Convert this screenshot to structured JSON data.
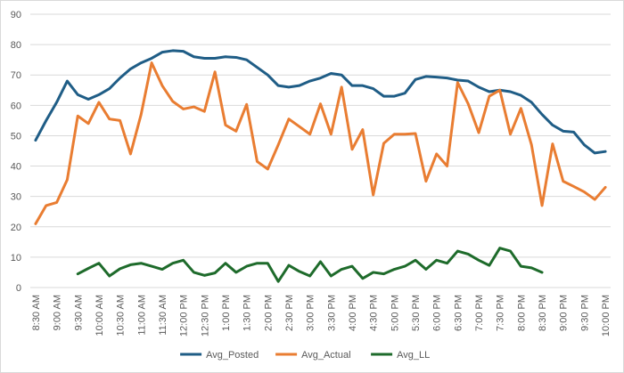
{
  "chart_data": {
    "type": "line",
    "categories": [
      "8:30 AM",
      null,
      "9:00 AM",
      null,
      "9:30 AM",
      null,
      "10:00 AM",
      null,
      "10:30 AM",
      null,
      "11:00 AM",
      null,
      "11:30 AM",
      null,
      "12:00 PM",
      null,
      "12:30 PM",
      null,
      "1:00 PM",
      null,
      "1:30 PM",
      null,
      "2:00 PM",
      null,
      "2:30 PM",
      null,
      "3:00 PM",
      null,
      "3:30 PM",
      null,
      "4:00 PM",
      null,
      "4:30 PM",
      null,
      "5:00 PM",
      null,
      "5:30 PM",
      null,
      "6:00 PM",
      null,
      "6:30 PM",
      null,
      "7:00 PM",
      null,
      "7:30 PM",
      null,
      "8:00 PM",
      null,
      "8:30 PM",
      null,
      "9:00 PM",
      null,
      "9:30 PM",
      null,
      "10:00 PM"
    ],
    "series": [
      {
        "name": "Avg_Posted",
        "color": "#1f5d86",
        "values": [
          48.5,
          55,
          61,
          68,
          63.5,
          62,
          63.5,
          65.5,
          69,
          72,
          74,
          75.5,
          77.5,
          78,
          77.8,
          76,
          75.5,
          75.5,
          76,
          75.8,
          75,
          72.5,
          70,
          66.5,
          66,
          66.5,
          68,
          69,
          70.5,
          70,
          66.5,
          66.5,
          65.5,
          63,
          63,
          64,
          68.5,
          69.5,
          69.3,
          69,
          68.3,
          68,
          66,
          64.5,
          65,
          64.5,
          63.3,
          61,
          57,
          53.5,
          51.5,
          51.2,
          47,
          44.3,
          44.8
        ]
      },
      {
        "name": "Avg_Actual",
        "color": "#e97d32",
        "values": [
          21,
          27,
          28,
          35.5,
          56.5,
          54,
          61,
          55.5,
          55,
          44,
          57,
          74,
          66.5,
          61.3,
          58.8,
          59.5,
          58,
          71,
          53.5,
          51.5,
          60.3,
          41.5,
          39,
          47,
          55.5,
          53,
          50.5,
          60.5,
          50.5,
          66,
          45.5,
          52,
          30.5,
          47.5,
          50.5,
          50.5,
          50.7,
          35,
          44,
          40,
          67.5,
          60.5,
          51,
          63,
          65,
          50.5,
          59,
          47,
          27,
          47.3,
          35,
          33.3,
          31.5,
          29,
          33
        ]
      },
      {
        "name": "Avg_LL",
        "color": "#1e6b2b",
        "values": [
          null,
          null,
          null,
          null,
          4.5,
          6.3,
          8,
          3.8,
          6.2,
          7.5,
          8,
          7,
          6,
          8,
          9,
          5,
          4,
          4.8,
          8,
          5,
          7,
          8,
          8,
          2,
          7.3,
          5.3,
          3.8,
          8.5,
          3.8,
          6,
          7,
          3,
          5,
          4.5,
          6,
          7,
          9,
          6,
          9,
          8,
          12,
          11,
          9,
          7.3,
          13,
          12,
          7,
          6.5,
          5,
          null,
          null,
          null,
          null,
          null,
          null
        ]
      }
    ],
    "ylim": [
      0,
      90
    ],
    "yticks": [
      0,
      10,
      20,
      30,
      40,
      50,
      60,
      70,
      80,
      90
    ],
    "grid": true,
    "legend": "bottom"
  }
}
